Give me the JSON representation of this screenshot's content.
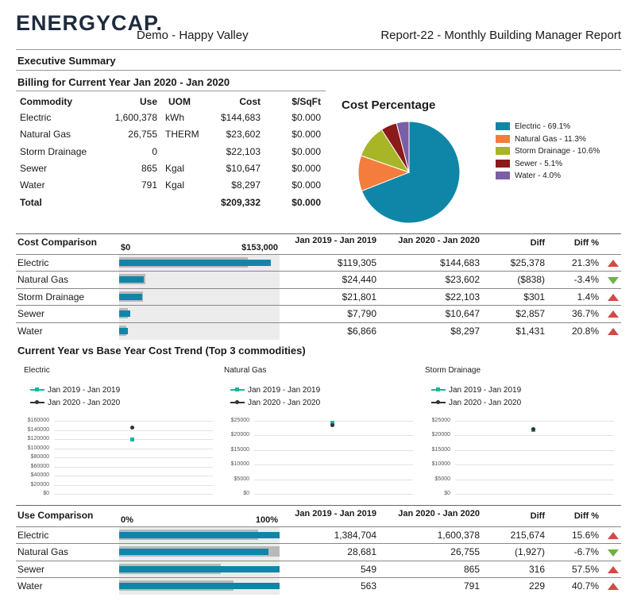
{
  "header": {
    "logo": "ENERGYCAP.",
    "org": "Demo - Happy Valley",
    "report": "Report-22 - Monthly Building Manager Report"
  },
  "executive_summary": "Executive Summary",
  "billing": {
    "title": "Billing for Current Year Jan 2020 - Jan 2020",
    "headers": [
      "Commodity",
      "Use",
      "UOM",
      "Cost",
      "$/SqFt"
    ],
    "rows": [
      {
        "commodity": "Electric",
        "use": "1,600,378",
        "uom": "kWh",
        "cost": "$144,683",
        "sqft": "$0.000"
      },
      {
        "commodity": "Natural Gas",
        "use": "26,755",
        "uom": "THERM",
        "cost": "$23,602",
        "sqft": "$0.000"
      },
      {
        "commodity": "Storm Drainage",
        "use": "0",
        "uom": "",
        "cost": "$22,103",
        "sqft": "$0.000"
      },
      {
        "commodity": "Sewer",
        "use": "865",
        "uom": "Kgal",
        "cost": "$10,647",
        "sqft": "$0.000"
      },
      {
        "commodity": "Water",
        "use": "791",
        "uom": "Kgal",
        "cost": "$8,297",
        "sqft": "$0.000"
      }
    ],
    "total": {
      "label": "Total",
      "cost": "$209,332",
      "sqft": "$0.000"
    }
  },
  "pie": {
    "title": "Cost Percentage",
    "legend": [
      "Electric - 69.1%",
      "Natural Gas - 11.3%",
      "Storm Drainage - 10.6%",
      "Sewer - 5.1%",
      "Water - 4.0%"
    ]
  },
  "chart_data": [
    {
      "type": "pie",
      "title": "Cost Percentage",
      "categories": [
        "Electric",
        "Natural Gas",
        "Storm Drainage",
        "Sewer",
        "Water"
      ],
      "values": [
        69.1,
        11.3,
        10.6,
        5.1,
        4.0
      ],
      "colors": [
        "#0f86a8",
        "#f47c3c",
        "#a7b527",
        "#8b1a1a",
        "#7b5ea7"
      ]
    },
    {
      "type": "scatter",
      "title": "Electric",
      "series": [
        {
          "name": "Jan 2019 - Jan 2019",
          "values": [
            119305
          ]
        },
        {
          "name": "Jan 2020 - Jan 2020",
          "values": [
            144683
          ]
        }
      ],
      "ylim": [
        0,
        160000
      ],
      "yticks": [
        "$160000",
        "$140000",
        "$120000",
        "$100000",
        "$80000",
        "$60000",
        "$40000",
        "$20000",
        "$0"
      ]
    },
    {
      "type": "scatter",
      "title": "Natural Gas",
      "series": [
        {
          "name": "Jan 2019 - Jan 2019",
          "values": [
            24440
          ]
        },
        {
          "name": "Jan 2020 - Jan 2020",
          "values": [
            23602
          ]
        }
      ],
      "ylim": [
        0,
        25000
      ],
      "yticks": [
        "$25000",
        "$20000",
        "$15000",
        "$10000",
        "$5000",
        "$0"
      ]
    },
    {
      "type": "scatter",
      "title": "Storm Drainage",
      "series": [
        {
          "name": "Jan 2019 - Jan 2019",
          "values": [
            21801
          ]
        },
        {
          "name": "Jan 2020 - Jan 2020",
          "values": [
            22103
          ]
        }
      ],
      "ylim": [
        0,
        25000
      ],
      "yticks": [
        "$25000",
        "$20000",
        "$15000",
        "$10000",
        "$5000",
        "$0"
      ]
    }
  ],
  "cost_comparison": {
    "title": "Cost Comparison",
    "axis_min": "$0",
    "axis_max": "$153,000",
    "max_value": 153000,
    "col_prev": "Jan 2019 - Jan 2019",
    "col_cur": "Jan 2020 - Jan 2020",
    "col_diff": "Diff",
    "col_diffpct": "Diff %",
    "rows": [
      {
        "name": "Electric",
        "prev": "$119,305",
        "cur": "$144,683",
        "diff": "$25,378",
        "pct": "21.3%",
        "dir": "up",
        "prev_v": 119305,
        "cur_v": 144683
      },
      {
        "name": "Natural Gas",
        "prev": "$24,440",
        "cur": "$23,602",
        "diff": "($838)",
        "pct": "-3.4%",
        "dir": "down",
        "prev_v": 24440,
        "cur_v": 23602
      },
      {
        "name": "Storm Drainage",
        "prev": "$21,801",
        "cur": "$22,103",
        "diff": "$301",
        "pct": "1.4%",
        "dir": "up",
        "prev_v": 21801,
        "cur_v": 22103
      },
      {
        "name": "Sewer",
        "prev": "$7,790",
        "cur": "$10,647",
        "diff": "$2,857",
        "pct": "36.7%",
        "dir": "up",
        "prev_v": 7790,
        "cur_v": 10647
      },
      {
        "name": "Water",
        "prev": "$6,866",
        "cur": "$8,297",
        "diff": "$1,431",
        "pct": "20.8%",
        "dir": "up",
        "prev_v": 6866,
        "cur_v": 8297
      }
    ]
  },
  "trend": {
    "title": "Current Year vs Base Year Cost Trend (Top 3 commodities)",
    "legend_prev": "Jan 2019 - Jan 2019",
    "legend_cur": "Jan 2020 - Jan 2020"
  },
  "use_comparison": {
    "title": "Use Comparison",
    "axis_min": "0%",
    "axis_max": "100%",
    "col_prev": "Jan 2019 - Jan 2019",
    "col_cur": "Jan 2020 - Jan 2020",
    "col_diff": "Diff",
    "col_diffpct": "Diff %",
    "rows": [
      {
        "name": "Electric",
        "prev": "1,384,704",
        "cur": "1,600,378",
        "diff": "215,674",
        "pct": "15.6%",
        "dir": "up",
        "prev_f": 0.865,
        "cur_f": 1.0
      },
      {
        "name": "Natural Gas",
        "prev": "28,681",
        "cur": "26,755",
        "diff": "(1,927)",
        "pct": "-6.7%",
        "dir": "down",
        "prev_f": 1.0,
        "cur_f": 0.933
      },
      {
        "name": "Sewer",
        "prev": "549",
        "cur": "865",
        "diff": "316",
        "pct": "57.5%",
        "dir": "up",
        "prev_f": 0.635,
        "cur_f": 1.0
      },
      {
        "name": "Water",
        "prev": "563",
        "cur": "791",
        "diff": "229",
        "pct": "40.7%",
        "dir": "up",
        "prev_f": 0.712,
        "cur_f": 1.0
      }
    ]
  }
}
